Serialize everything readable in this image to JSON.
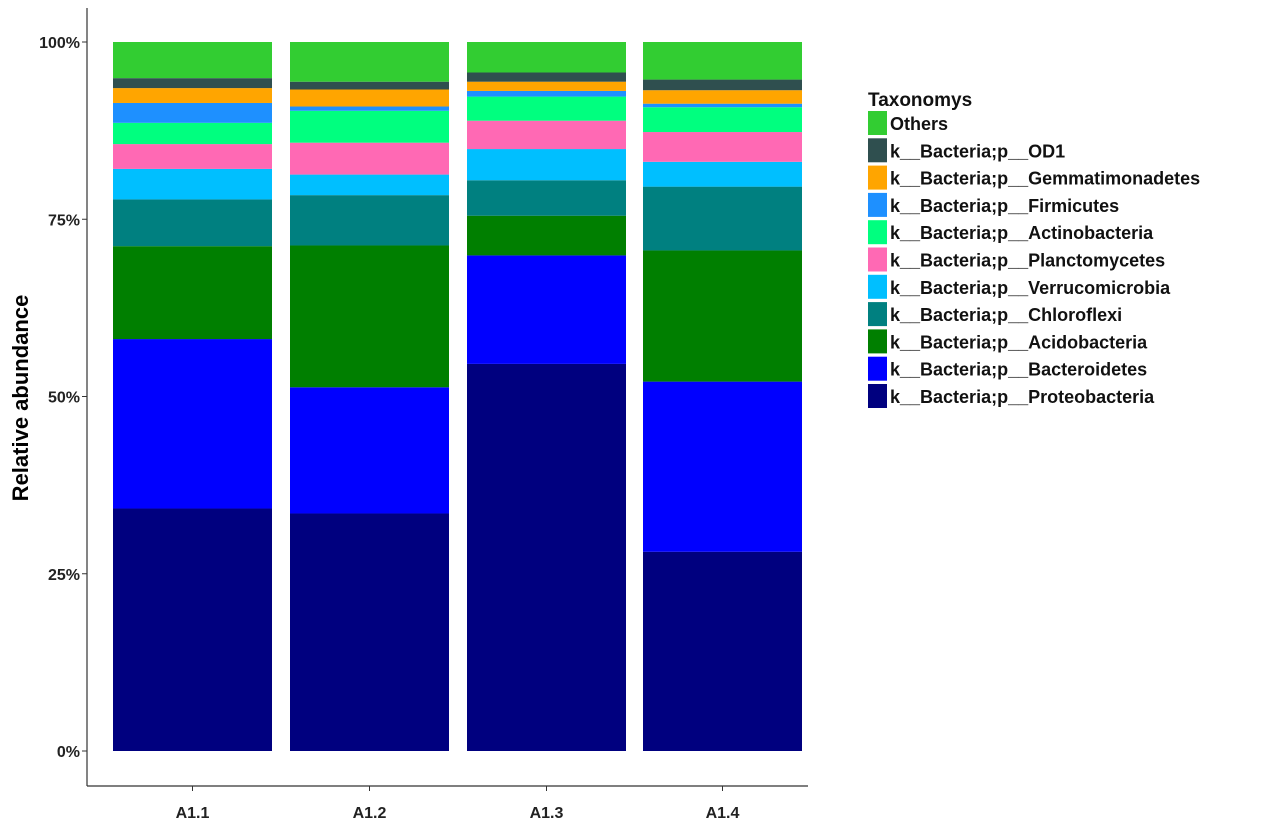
{
  "chart_data": {
    "type": "bar",
    "stacked": true,
    "ylabel": "Relative abundance",
    "xlabel": "",
    "ylim": [
      0,
      100
    ],
    "y_ticks": [
      "0%",
      "25%",
      "50%",
      "75%",
      "100%"
    ],
    "y_tick_values": [
      0,
      25,
      50,
      75,
      100
    ],
    "grid": false,
    "legend_position": "right",
    "legend_title": "Taxonomys",
    "categories": [
      "A1.1",
      "A1.2",
      "A1.3",
      "A1.4"
    ],
    "series": [
      {
        "name": "k__Bacteria;p__Proteobacteria",
        "color": "#00007f",
        "values": [
          34.2,
          33.5,
          54.6,
          28.1
        ]
      },
      {
        "name": "k__Bacteria;p__Bacteroidetes",
        "color": "#0000ff",
        "values": [
          23.9,
          17.8,
          15.3,
          24.0
        ]
      },
      {
        "name": "k__Bacteria;p__Acidobacteria",
        "color": "#007f00",
        "values": [
          13.1,
          20.0,
          5.6,
          18.5
        ]
      },
      {
        "name": "k__Bacteria;p__Chloroflexi",
        "color": "#008080",
        "values": [
          6.6,
          7.1,
          5.0,
          9.0
        ]
      },
      {
        "name": "k__Bacteria;p__Verrucomicrobia",
        "color": "#00bfff",
        "values": [
          4.3,
          2.9,
          4.4,
          3.5
        ]
      },
      {
        "name": "k__Bacteria;p__Planctomycetes",
        "color": "#ff69b4",
        "values": [
          3.5,
          4.5,
          4.0,
          4.2
        ]
      },
      {
        "name": "k__Bacteria;p__Actinobacteria",
        "color": "#00ff7f",
        "values": [
          3.0,
          4.5,
          3.4,
          3.5
        ]
      },
      {
        "name": "k__Bacteria;p__Firmicutes",
        "color": "#1e90ff",
        "values": [
          2.8,
          0.6,
          0.8,
          0.5
        ]
      },
      {
        "name": "k__Bacteria;p__Gemmatimonadetes",
        "color": "#ffa500",
        "values": [
          2.1,
          2.4,
          1.3,
          1.9
        ]
      },
      {
        "name": "k__Bacteria;p__OD1",
        "color": "#2f4f4f",
        "values": [
          1.4,
          1.1,
          1.3,
          1.5
        ]
      },
      {
        "name": "Others",
        "color": "#32cd32",
        "values": [
          5.1,
          5.6,
          4.3,
          5.3
        ]
      }
    ]
  }
}
